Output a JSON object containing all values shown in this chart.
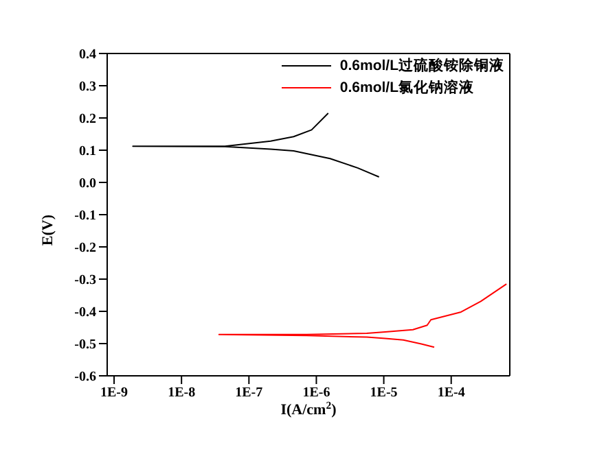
{
  "chart_data": {
    "type": "line",
    "xlabel": "I(A/cm$^{2}$)",
    "ylabel": "E(V)",
    "log": "x",
    "xlim": [
      7.9e-10,
      0.00074
    ],
    "xticks": [
      {
        "value": 1e-09,
        "label": "1E-9"
      },
      {
        "value": 1e-08,
        "label": "1E-8"
      },
      {
        "value": 1e-07,
        "label": "1E-7"
      },
      {
        "value": 1e-06,
        "label": "1E-6"
      },
      {
        "value": 1e-05,
        "label": "1E-5"
      },
      {
        "value": 0.0001,
        "label": "1E-4"
      }
    ],
    "ylim": [
      -0.6,
      0.4
    ],
    "yticks": [
      0.4,
      0.3,
      0.2,
      0.1,
      {
        "value": 0,
        "label": "0.0"
      },
      -0.1,
      -0.2,
      -0.3,
      -0.4,
      -0.5,
      -0.6
    ],
    "legend": "top right",
    "marker": "none",
    "line_style": "solid",
    "series": [
      {
        "name": "0.6mol/L过硫酸铵除铜液",
        "color": "#000000",
        "x": [
          8.5e-06,
          4.1e-06,
          1.6e-06,
          4.6e-07,
          2.1e-07,
          4.4e-08,
          1.9e-09,
          4.4e-08,
          2.1e-07,
          4.6e-07,
          8.5e-07,
          1.5e-06
        ],
        "values": [
          0.017,
          0.045,
          0.074,
          0.098,
          0.103,
          0.111,
          0.112,
          0.112,
          0.128,
          0.142,
          0.163,
          0.215
        ]
      },
      {
        "name": "0.6mol/L氯化钠溶液",
        "color": "#ff0000",
        "x": [
          5.6e-05,
          3.6e-05,
          1.95e-05,
          1.05e-05,
          5.6e-06,
          7.2e-07,
          3.6e-08,
          7.2e-07,
          5.6e-06,
          1.05e-05,
          2.7e-05,
          4.4e-05,
          5e-05,
          0.00014,
          0.000275,
          0.00066
        ],
        "values": [
          -0.511,
          -0.501,
          -0.489,
          -0.484,
          -0.48,
          -0.475,
          -0.472,
          -0.472,
          -0.468,
          -0.464,
          -0.457,
          -0.443,
          -0.426,
          -0.402,
          -0.369,
          -0.315
        ]
      }
    ]
  }
}
